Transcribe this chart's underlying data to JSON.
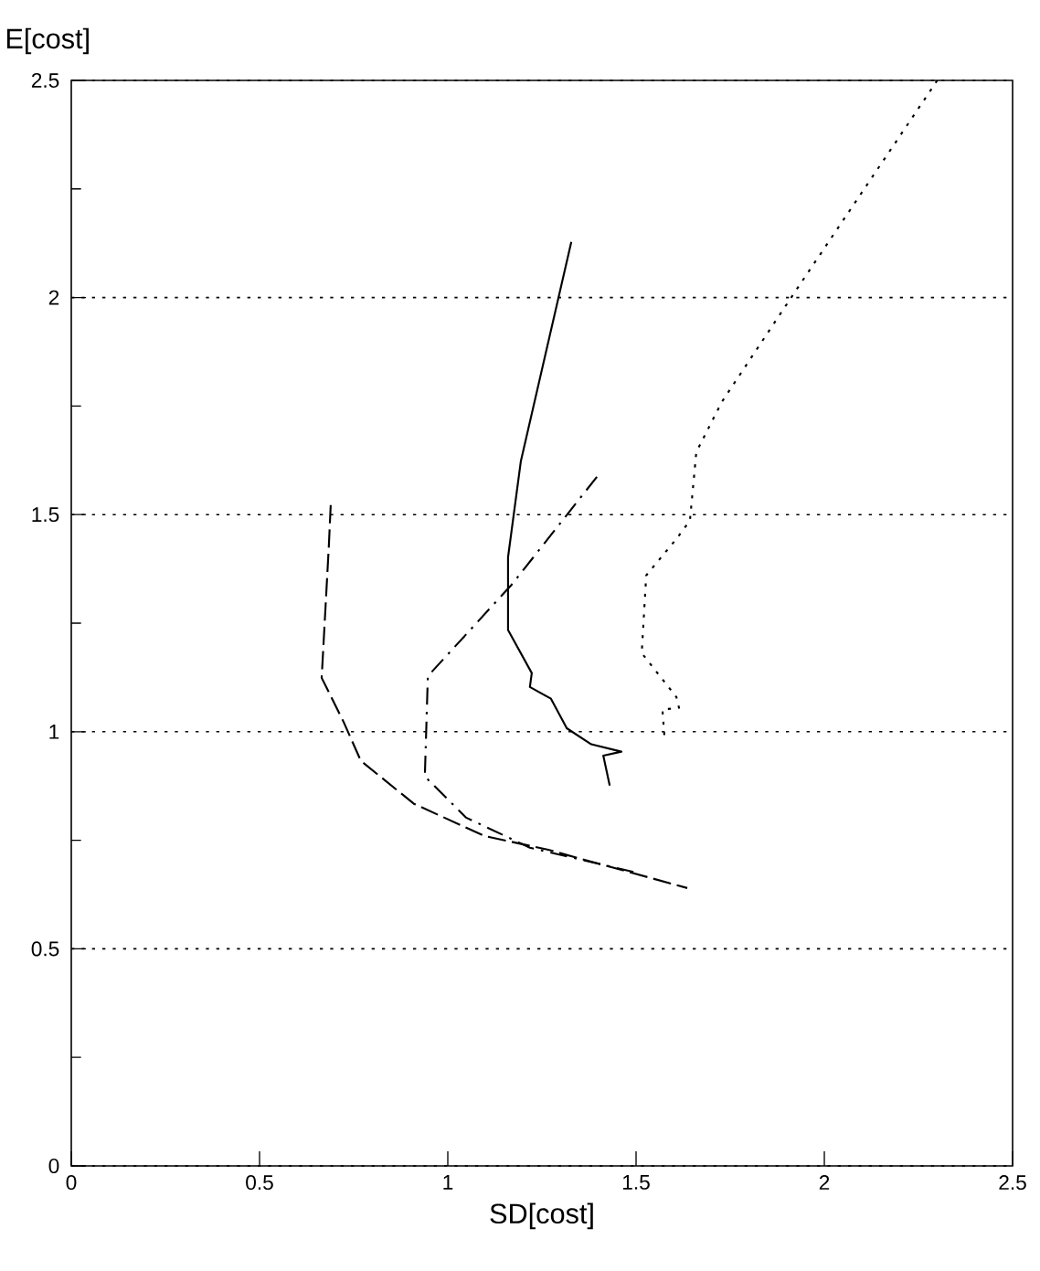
{
  "chart_data": {
    "type": "line",
    "xlabel": "SD[cost]",
    "ylabel": "E[cost]",
    "xlim": [
      0,
      2.5
    ],
    "ylim": [
      0,
      2.5
    ],
    "xticks": [
      0,
      0.5,
      1,
      1.5,
      2,
      2.5
    ],
    "yticks": [
      0,
      {
        "value": 0.25,
        "label": null
      },
      0.5,
      {
        "value": 0.75,
        "label": null
      },
      1,
      {
        "value": 1.25,
        "label": null
      },
      1.5,
      {
        "value": 1.75,
        "label": null
      },
      2,
      {
        "value": 2.25,
        "label": null
      },
      2.5
    ],
    "grid": "y",
    "series": [
      {
        "color": "#000000",
        "line_style": "solid",
        "x": [
          1.328,
          1.194,
          1.16,
          1.16,
          1.223,
          1.218,
          1.274,
          1.316,
          1.381,
          1.461,
          1.413,
          1.43
        ],
        "values": [
          2.128,
          1.623,
          1.402,
          1.234,
          1.135,
          1.103,
          1.076,
          1.008,
          0.971,
          0.954,
          0.945,
          0.876
        ]
      },
      {
        "color": "#000000",
        "line_style": "dashed",
        "x": [
          0.689,
          0.684,
          0.665,
          0.723,
          0.769,
          0.91,
          1.097,
          1.267,
          1.485,
          1.636
        ],
        "values": [
          1.522,
          1.427,
          1.124,
          1.023,
          0.933,
          0.834,
          0.76,
          0.728,
          0.676,
          0.64
        ]
      },
      {
        "color": "#000000",
        "line_style": "dashdot",
        "x": [
          1.396,
          1.17,
          0.947,
          0.939,
          1.049,
          1.218,
          1.498
        ],
        "values": [
          1.587,
          1.339,
          1.128,
          0.897,
          0.802,
          0.733,
          0.676
        ]
      },
      {
        "color": "#000000",
        "line_style": "dotted",
        "x": [
          2.3,
          1.922,
          1.728,
          1.66,
          1.643,
          1.607,
          1.527,
          1.515,
          1.607,
          1.614,
          1.57,
          1.575
        ],
        "values": [
          2.5,
          2.013,
          1.76,
          1.644,
          1.486,
          1.444,
          1.36,
          1.181,
          1.08,
          1.055,
          1.051,
          0.992
        ]
      }
    ]
  }
}
